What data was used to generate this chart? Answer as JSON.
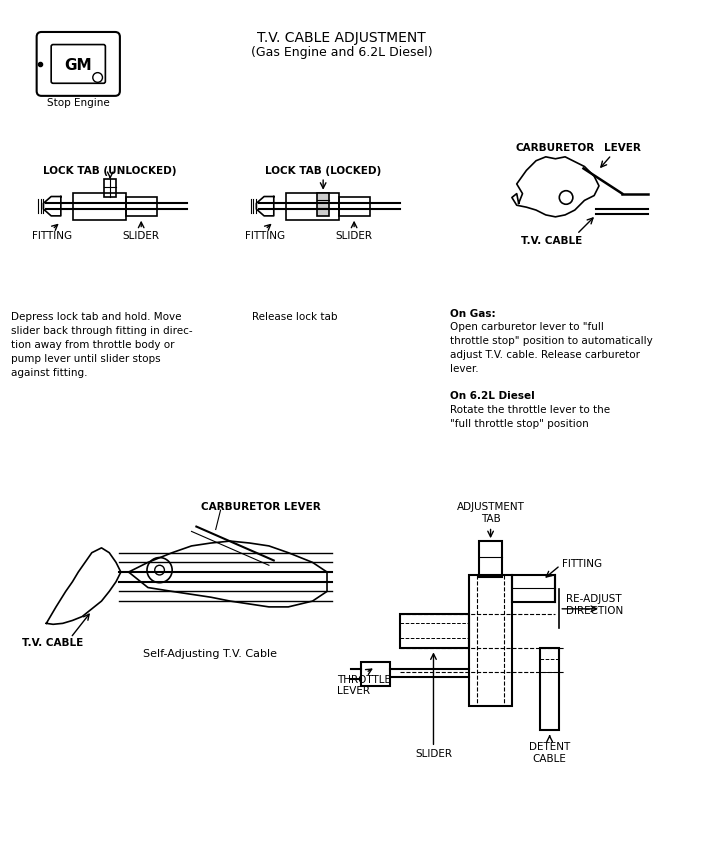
{
  "title_line1": "T.V. CABLE ADJUSTMENT",
  "title_line2": "(Gas Engine and 6.2L Diesel)",
  "background_color": "#ffffff",
  "text_color": "#000000",
  "fig_width": 7.01,
  "fig_height": 8.46,
  "dpi": 100,
  "annotations": {
    "stop_engine": "Stop Engine",
    "lock_tab_unlocked": "LOCK TAB (UNLOCKED)",
    "lock_tab_locked": "LOCK TAB (LOCKED)",
    "carburetor": "CARBURETOR",
    "lever": "LEVER",
    "fitting1": "FITTING",
    "slider1": "SLIDER",
    "fitting2": "FITTING",
    "slider2": "SLIDER",
    "tv_cable_upper": "T.V. CABLE",
    "desc1": "Depress lock tab and hold. Move\nslider back through fitting in direc-\ntion away from throttle body or\npump lever until slider stops\nagainst fitting.",
    "desc2": "Release lock tab",
    "on_gas_title": "On Gas:",
    "on_gas_text": "Open carburetor lever to \"full\nthrottle stop\" position to automatically\nadjust T.V. cable. Release carburetor\nlever.",
    "on_diesel_title": "On 6.2L Diesel",
    "on_diesel_text": "Rotate the throttle lever to the\n\"full throttle stop\" position",
    "carb_lever": "CARBURETOR LEVER",
    "tv_cable_lower": "T.V. CABLE",
    "self_adjust": "Self-Adjusting T.V. Cable",
    "adj_tab": "ADJUSTMENT\nTAB",
    "fitting3": "FITTING",
    "readjust": "RE-ADJUST\nDIRECTION",
    "throttle_lever": "THROTTLE\nLEVER",
    "slider3": "SLIDER",
    "detent_cable": "DETENT\nCABLE"
  }
}
